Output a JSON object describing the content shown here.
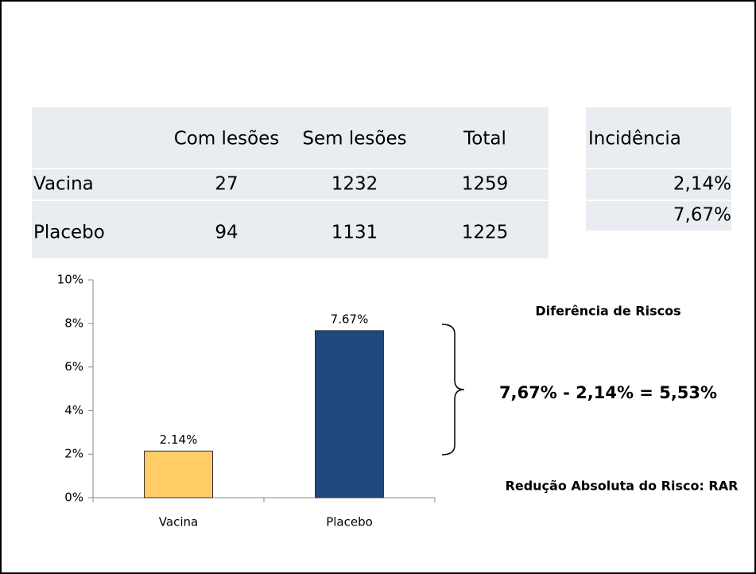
{
  "table": {
    "columns": [
      "Com lesões",
      "Sem lesões",
      "Total"
    ],
    "rows": [
      {
        "label": "Vacina",
        "values": [
          27,
          1232,
          1259
        ]
      },
      {
        "label": "Placebo",
        "values": [
          94,
          1131,
          1225
        ]
      }
    ]
  },
  "incidence": {
    "header": "Incidência",
    "values": [
      "2,14%",
      "7,67%"
    ]
  },
  "chart_data": {
    "type": "bar",
    "categories": [
      "Vacina",
      "Placebo"
    ],
    "values": [
      2.14,
      7.67
    ],
    "value_labels": [
      "2.14%",
      "7.67%"
    ],
    "colors": [
      "#ffcc66",
      "#1f497d"
    ],
    "ylim": [
      0,
      10
    ],
    "yticks": [
      {
        "value": 0,
        "label": "0%"
      },
      {
        "value": 2,
        "label": "2%"
      },
      {
        "value": 4,
        "label": "4%"
      },
      {
        "value": 6,
        "label": "6%"
      },
      {
        "value": 8,
        "label": "8%"
      },
      {
        "value": 10,
        "label": "10%"
      }
    ],
    "grid": false
  },
  "annotations": {
    "title": "Diferência de Riscos",
    "formula": "7,67% - 2,14% = 5,53%",
    "footer": "Redução Absoluta do Risco: RAR"
  }
}
